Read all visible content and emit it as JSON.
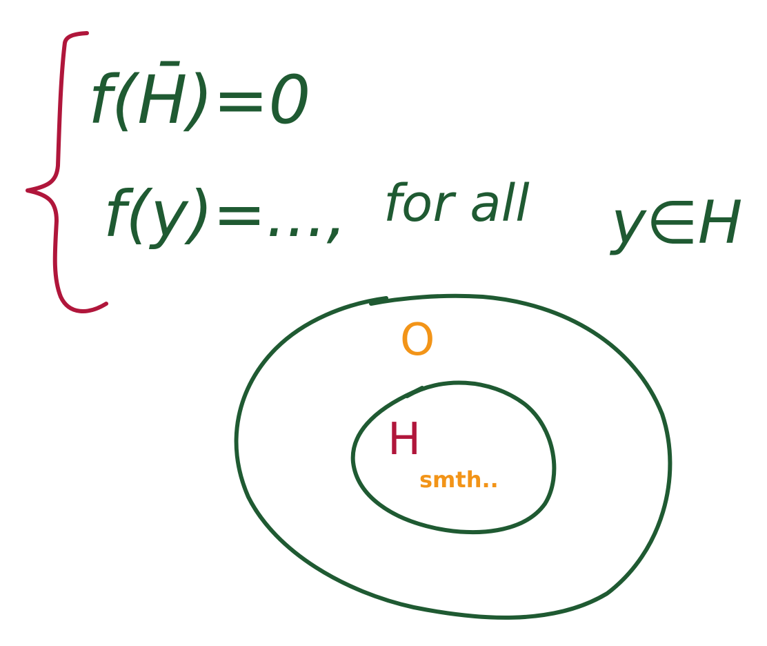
{
  "colors": {
    "green": "#1f5a32",
    "red": "#b0163b",
    "orange": "#f29418",
    "background": "#ffffff"
  },
  "equations": {
    "line1": "f(H̄)=0",
    "line2_lhs": "f(y)=...,",
    "line2_for": "for all",
    "line2_cond": "y∈H"
  },
  "diagram": {
    "outer_label": "O",
    "inner_label": "H",
    "inner_note": "smth.."
  }
}
